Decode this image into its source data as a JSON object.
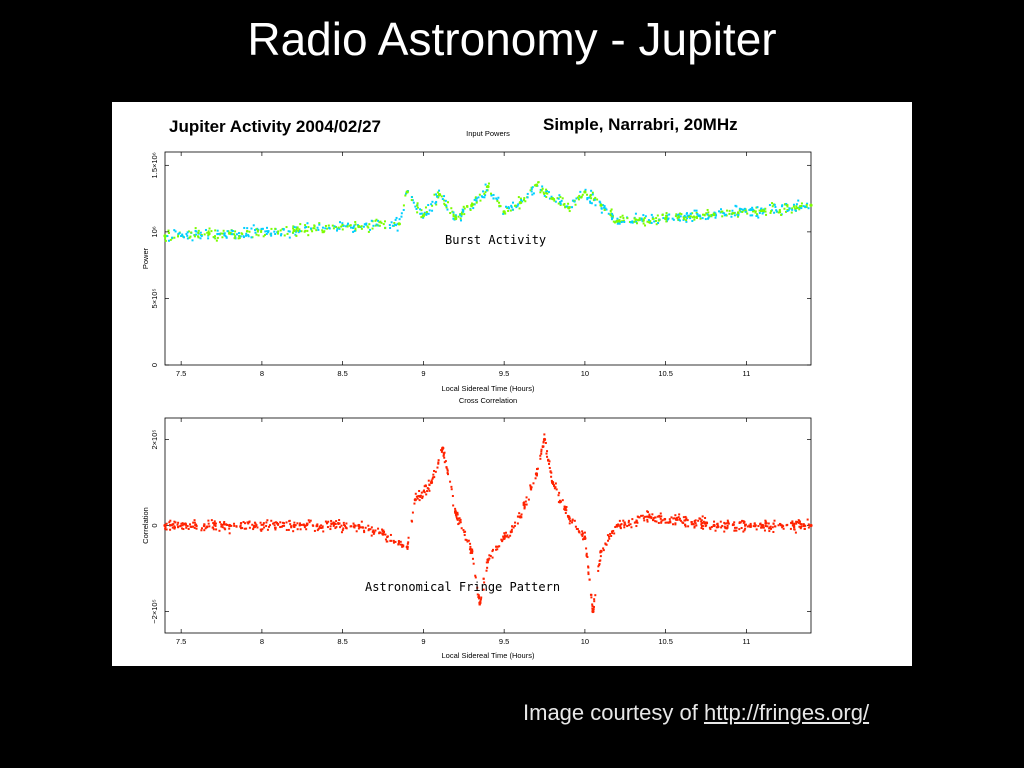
{
  "slide": {
    "title": "Radio Astronomy - Jupiter",
    "credit_prefix": "Image courtesy of ",
    "credit_link": "http://fringes.org/"
  },
  "figure": {
    "header_left": "Jupiter Activity 2004/02/27",
    "header_right": "Simple, Narrabri, 20MHz"
  },
  "colors": {
    "background": "#000000",
    "power_primary": "#7CFC00",
    "power_secondary": "#00CFFF",
    "correlation": "#FF2200"
  },
  "chart_data": [
    {
      "type": "scatter",
      "title": "Input Powers",
      "xlabel": "Local Sidereal Time (Hours)",
      "ylabel": "Power",
      "xlim": [
        7.4,
        11.4
      ],
      "ylim": [
        0,
        1600000.0
      ],
      "x_ticks": [
        7.5,
        8,
        8.5,
        9,
        9.5,
        10,
        10.5,
        11
      ],
      "x_tick_labels": [
        "7.5",
        "8",
        "8.5",
        "9",
        "9.5",
        "10",
        "10.5",
        "11"
      ],
      "y_ticks": [
        0,
        500000,
        1000000,
        1500000
      ],
      "y_tick_labels": [
        "0",
        "5×10⁵",
        "10⁶",
        "1.5×10⁶"
      ],
      "annotation": "Burst Activity",
      "series": [
        {
          "x": [
            7.4,
            7.8,
            8.2,
            8.6,
            8.85,
            8.9,
            9.0,
            9.1,
            9.2,
            9.3,
            9.4,
            9.5,
            9.6,
            9.7,
            9.8,
            9.9,
            10.0,
            10.1,
            10.2,
            10.5,
            10.8,
            11.1,
            11.4
          ],
          "y": [
            970000,
            990000,
            1010000,
            1040000,
            1060000,
            1300000,
            1120000,
            1280000,
            1100000,
            1200000,
            1340000,
            1150000,
            1220000,
            1350000,
            1250000,
            1180000,
            1300000,
            1200000,
            1080000,
            1100000,
            1130000,
            1160000,
            1200000
          ]
        }
      ]
    },
    {
      "type": "scatter",
      "title": "Cross Correlation",
      "xlabel": "Local Sidereal Time (Hours)",
      "ylabel": "Correlation",
      "xlim": [
        7.4,
        11.4
      ],
      "ylim": [
        -250000,
        250000
      ],
      "x_ticks": [
        7.5,
        8,
        8.5,
        9,
        9.5,
        10,
        10.5,
        11
      ],
      "x_tick_labels": [
        "7.5",
        "8",
        "8.5",
        "9",
        "9.5",
        "10",
        "10.5",
        "11"
      ],
      "y_ticks": [
        -200000,
        0,
        200000
      ],
      "y_tick_labels": [
        "−2×10⁵",
        "0",
        "2×10⁵"
      ],
      "annotation": "Astronomical Fringe Pattern",
      "series": [
        {
          "x": [
            7.4,
            7.8,
            8.2,
            8.6,
            8.75,
            8.9,
            8.95,
            9.05,
            9.12,
            9.2,
            9.3,
            9.35,
            9.4,
            9.5,
            9.6,
            9.7,
            9.75,
            9.8,
            9.9,
            10.0,
            10.05,
            10.1,
            10.2,
            10.4,
            10.8,
            11.1,
            11.4
          ],
          "y": [
            0,
            0,
            0,
            0,
            -20000,
            -50000,
            60000,
            100000,
            180000,
            30000,
            -60000,
            -180000,
            -80000,
            -30000,
            20000,
            120000,
            200000,
            100000,
            20000,
            -30000,
            -200000,
            -60000,
            0,
            20000,
            0,
            0,
            0
          ]
        }
      ]
    }
  ]
}
